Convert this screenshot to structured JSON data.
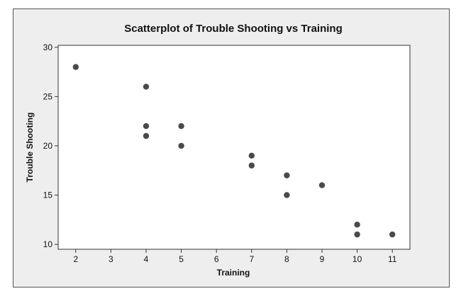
{
  "chart_data": {
    "type": "scatter",
    "title": "Scatterplot of Trouble Shooting vs Training",
    "xlabel": "Training",
    "ylabel": "Trouble Shooting",
    "xlim": [
      1.5,
      11.5
    ],
    "ylim": [
      9.5,
      30.2
    ],
    "x_ticks": [
      2,
      3,
      4,
      5,
      6,
      7,
      8,
      9,
      10,
      11
    ],
    "y_ticks": [
      10,
      15,
      20,
      25,
      30
    ],
    "grid": false,
    "legend": "none",
    "colors": {
      "point": "#4a4a4a",
      "frame_bg": "#eeeeee",
      "plot_bg": "#ffffff",
      "axis": "#333333"
    },
    "points": [
      {
        "x": 2,
        "y": 28
      },
      {
        "x": 4,
        "y": 26
      },
      {
        "x": 4,
        "y": 22
      },
      {
        "x": 4,
        "y": 21
      },
      {
        "x": 5,
        "y": 22
      },
      {
        "x": 5,
        "y": 20
      },
      {
        "x": 7,
        "y": 19
      },
      {
        "x": 7,
        "y": 18
      },
      {
        "x": 8,
        "y": 17
      },
      {
        "x": 8,
        "y": 15
      },
      {
        "x": 9,
        "y": 16
      },
      {
        "x": 10,
        "y": 12
      },
      {
        "x": 10,
        "y": 11
      },
      {
        "x": 11,
        "y": 11
      }
    ]
  }
}
